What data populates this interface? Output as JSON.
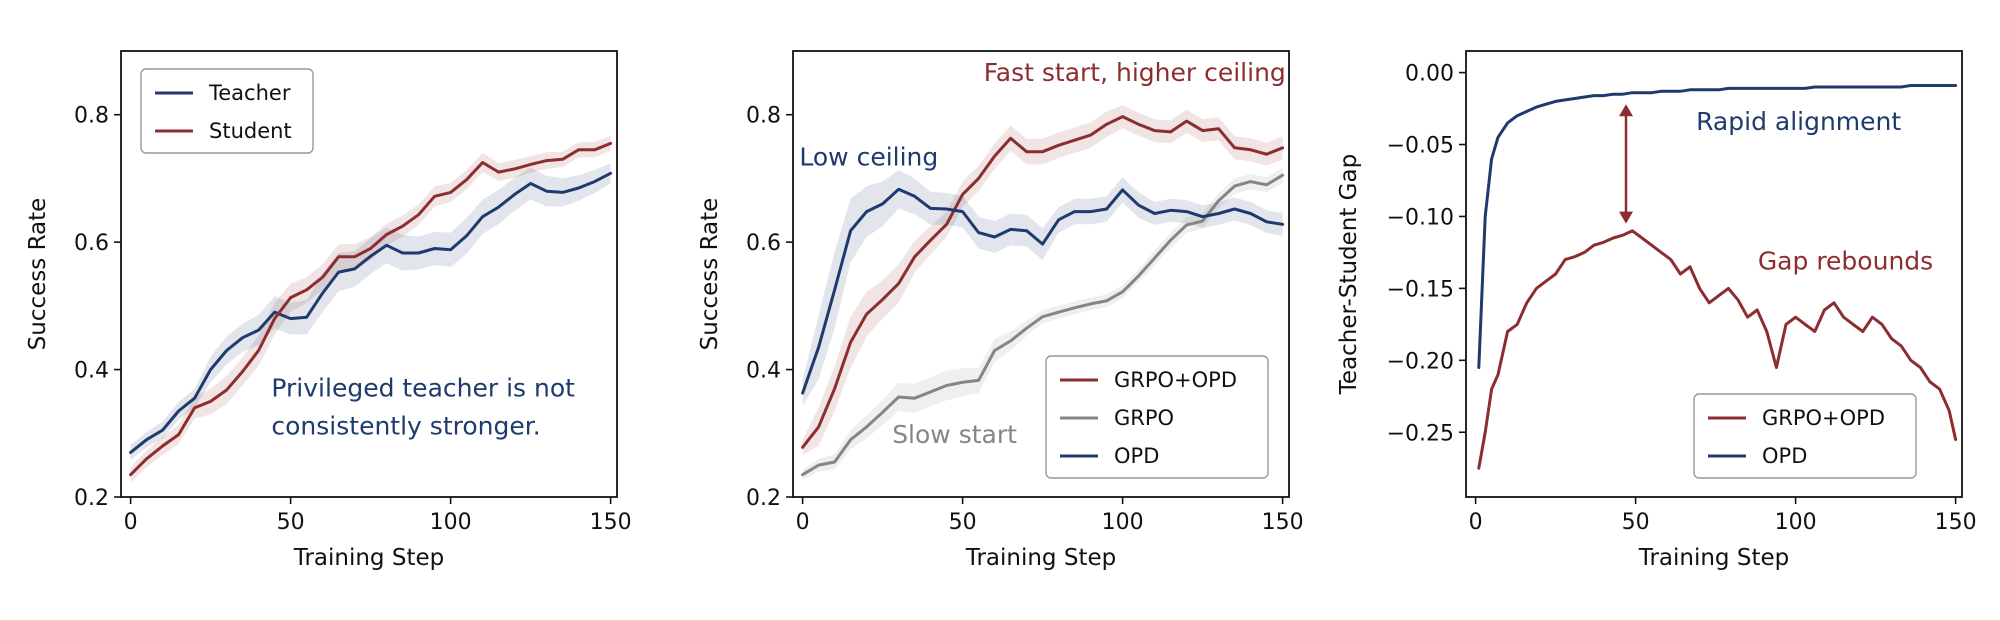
{
  "colors": {
    "teacher": "#1f3a6e",
    "student": "#8c2d30",
    "grpo": "#858585"
  },
  "chart_data": [
    {
      "type": "line",
      "xlabel": "Training Step",
      "ylabel": "Success Rate",
      "xlim": [
        -3,
        152
      ],
      "ylim": [
        0.2,
        0.9
      ],
      "xticks": [
        0,
        50,
        100,
        150
      ],
      "yticks": [
        0.2,
        0.4,
        0.6,
        0.8
      ],
      "ytick_labels": [
        "0.2",
        "0.4",
        "0.6",
        "0.8"
      ],
      "legend_position": "top-left",
      "x": [
        0,
        5,
        10,
        15,
        20,
        25,
        30,
        35,
        40,
        45,
        50,
        55,
        60,
        65,
        70,
        75,
        80,
        85,
        90,
        95,
        100,
        105,
        110,
        115,
        120,
        125,
        130,
        135,
        140,
        145,
        150
      ],
      "series": [
        {
          "name": "Teacher",
          "color": "#1f3a6e",
          "values": [
            0.27,
            0.29,
            0.305,
            0.335,
            0.355,
            0.4,
            0.43,
            0.45,
            0.462,
            0.49,
            0.48,
            0.482,
            0.52,
            0.553,
            0.558,
            0.578,
            0.595,
            0.583,
            0.583,
            0.59,
            0.588,
            0.61,
            0.64,
            0.655,
            0.675,
            0.692,
            0.68,
            0.678,
            0.685,
            0.695,
            0.708
          ],
          "band": [
            0.012,
            0.012,
            0.013,
            0.014,
            0.015,
            0.02,
            0.022,
            0.022,
            0.024,
            0.025,
            0.025,
            0.027,
            0.03,
            0.03,
            0.028,
            0.028,
            0.028,
            0.028,
            0.026,
            0.026,
            0.027,
            0.028,
            0.027,
            0.027,
            0.026,
            0.025,
            0.024,
            0.022,
            0.02,
            0.018,
            0.016
          ]
        },
        {
          "name": "Student",
          "color": "#8c2d30",
          "values": [
            0.235,
            0.26,
            0.28,
            0.298,
            0.34,
            0.35,
            0.368,
            0.397,
            0.43,
            0.48,
            0.513,
            0.525,
            0.545,
            0.577,
            0.577,
            0.59,
            0.612,
            0.625,
            0.643,
            0.672,
            0.678,
            0.698,
            0.725,
            0.71,
            0.715,
            0.722,
            0.728,
            0.73,
            0.745,
            0.745,
            0.755
          ],
          "band": [
            0.012,
            0.013,
            0.014,
            0.015,
            0.017,
            0.02,
            0.022,
            0.022,
            0.024,
            0.025,
            0.022,
            0.02,
            0.02,
            0.02,
            0.02,
            0.018,
            0.017,
            0.017,
            0.016,
            0.016,
            0.015,
            0.015,
            0.015,
            0.014,
            0.014,
            0.013,
            0.013,
            0.012,
            0.012,
            0.012,
            0.012
          ]
        }
      ],
      "annotations": [
        {
          "text": "Privileged teacher is not",
          "x": 44,
          "y": 0.358,
          "color": "#1f3a6e"
        },
        {
          "text": "consistently stronger.",
          "x": 44,
          "y": 0.298,
          "color": "#1f3a6e"
        }
      ]
    },
    {
      "type": "line",
      "xlabel": "Training Step",
      "ylabel": "Success Rate",
      "xlim": [
        -3,
        152
      ],
      "ylim": [
        0.2,
        0.9
      ],
      "xticks": [
        0,
        50,
        100,
        150
      ],
      "yticks": [
        0.2,
        0.4,
        0.6,
        0.8
      ],
      "ytick_labels": [
        "0.2",
        "0.4",
        "0.6",
        "0.8"
      ],
      "legend_position": "bottom-right",
      "x": [
        0,
        5,
        10,
        15,
        20,
        25,
        30,
        35,
        40,
        45,
        50,
        55,
        60,
        65,
        70,
        75,
        80,
        85,
        90,
        95,
        100,
        105,
        110,
        115,
        120,
        125,
        130,
        135,
        140,
        145,
        150
      ],
      "series": [
        {
          "name": "GRPO+OPD",
          "color": "#8c2d30",
          "values": [
            0.278,
            0.31,
            0.37,
            0.443,
            0.487,
            0.51,
            0.535,
            0.577,
            0.603,
            0.628,
            0.675,
            0.7,
            0.735,
            0.763,
            0.742,
            0.742,
            0.752,
            0.76,
            0.768,
            0.785,
            0.797,
            0.785,
            0.775,
            0.773,
            0.79,
            0.775,
            0.778,
            0.748,
            0.745,
            0.738,
            0.748
          ],
          "band": [
            0.012,
            0.03,
            0.035,
            0.04,
            0.035,
            0.03,
            0.03,
            0.025,
            0.022,
            0.02,
            0.02,
            0.02,
            0.02,
            0.02,
            0.02,
            0.02,
            0.02,
            0.02,
            0.02,
            0.02,
            0.018,
            0.018,
            0.018,
            0.018,
            0.018,
            0.018,
            0.018,
            0.018,
            0.018,
            0.018,
            0.018
          ]
        },
        {
          "name": "GRPO",
          "color": "#858585",
          "values": [
            0.235,
            0.25,
            0.255,
            0.29,
            0.31,
            0.333,
            0.357,
            0.355,
            0.365,
            0.375,
            0.38,
            0.383,
            0.43,
            0.445,
            0.465,
            0.483,
            0.49,
            0.497,
            0.503,
            0.508,
            0.522,
            0.547,
            0.575,
            0.603,
            0.627,
            0.633,
            0.665,
            0.688,
            0.695,
            0.69,
            0.705
          ],
          "band": [
            0.008,
            0.01,
            0.012,
            0.015,
            0.018,
            0.02,
            0.022,
            0.023,
            0.023,
            0.023,
            0.022,
            0.02,
            0.018,
            0.015,
            0.012,
            0.01,
            0.01,
            0.01,
            0.01,
            0.01,
            0.01,
            0.01,
            0.012,
            0.012,
            0.012,
            0.012,
            0.012,
            0.012,
            0.012,
            0.012,
            0.012
          ]
        },
        {
          "name": "OPD",
          "color": "#1f3a6e",
          "values": [
            0.363,
            0.435,
            0.525,
            0.618,
            0.648,
            0.66,
            0.683,
            0.672,
            0.653,
            0.652,
            0.648,
            0.615,
            0.608,
            0.62,
            0.618,
            0.597,
            0.635,
            0.648,
            0.648,
            0.652,
            0.682,
            0.658,
            0.645,
            0.65,
            0.648,
            0.64,
            0.645,
            0.652,
            0.645,
            0.632,
            0.628
          ],
          "band": [
            0.02,
            0.05,
            0.06,
            0.05,
            0.04,
            0.035,
            0.03,
            0.028,
            0.026,
            0.025,
            0.025,
            0.025,
            0.025,
            0.025,
            0.025,
            0.025,
            0.02,
            0.02,
            0.02,
            0.02,
            0.02,
            0.02,
            0.018,
            0.018,
            0.018,
            0.018,
            0.018,
            0.018,
            0.018,
            0.018,
            0.018
          ]
        }
      ],
      "annotations": [
        {
          "text": "Fast start, higher ceiling",
          "x": 151,
          "y": 0.853,
          "color": "#8c2d30",
          "anchor": "end"
        },
        {
          "text": "Low ceiling",
          "x": -1,
          "y": 0.72,
          "color": "#1f3a6e"
        },
        {
          "text": "Slow start",
          "x": 28,
          "y": 0.285,
          "color": "#858585"
        }
      ]
    },
    {
      "type": "line",
      "xlabel": "Training Step",
      "ylabel": "Teacher-Student Gap",
      "xlim": [
        -3,
        152
      ],
      "ylim": [
        -0.295,
        0.015
      ],
      "xticks": [
        0,
        50,
        100,
        150
      ],
      "yticks": [
        -0.25,
        -0.2,
        -0.15,
        -0.1,
        -0.05,
        0.0
      ],
      "ytick_labels": [
        "−0.25",
        "−0.20",
        "−0.15",
        "−0.10",
        "−0.05",
        "0.00"
      ],
      "legend_position": "bottom-right",
      "x": [
        1,
        3,
        5,
        7,
        10,
        13,
        16,
        19,
        22,
        25,
        28,
        31,
        34,
        37,
        40,
        43,
        46,
        49,
        52,
        55,
        58,
        61,
        64,
        67,
        70,
        73,
        76,
        79,
        82,
        85,
        88,
        91,
        94,
        97,
        100,
        103,
        106,
        109,
        112,
        115,
        118,
        121,
        124,
        127,
        130,
        133,
        136,
        139,
        142,
        145,
        148,
        150
      ],
      "series": [
        {
          "name": "GRPO+OPD",
          "color": "#8c2d30",
          "values": [
            -0.275,
            -0.25,
            -0.22,
            -0.21,
            -0.18,
            -0.175,
            -0.16,
            -0.15,
            -0.145,
            -0.14,
            -0.13,
            -0.128,
            -0.125,
            -0.12,
            -0.118,
            -0.115,
            -0.113,
            -0.11,
            -0.115,
            -0.12,
            -0.125,
            -0.13,
            -0.14,
            -0.135,
            -0.15,
            -0.16,
            -0.155,
            -0.15,
            -0.158,
            -0.17,
            -0.165,
            -0.18,
            -0.205,
            -0.175,
            -0.17,
            -0.175,
            -0.18,
            -0.165,
            -0.16,
            -0.17,
            -0.175,
            -0.18,
            -0.17,
            -0.175,
            -0.185,
            -0.19,
            -0.2,
            -0.205,
            -0.215,
            -0.22,
            -0.235,
            -0.255
          ]
        },
        {
          "name": "OPD",
          "color": "#1f3a6e",
          "values": [
            -0.205,
            -0.1,
            -0.06,
            -0.045,
            -0.035,
            -0.03,
            -0.027,
            -0.024,
            -0.022,
            -0.02,
            -0.019,
            -0.018,
            -0.017,
            -0.016,
            -0.016,
            -0.015,
            -0.015,
            -0.014,
            -0.014,
            -0.014,
            -0.013,
            -0.013,
            -0.013,
            -0.012,
            -0.012,
            -0.012,
            -0.012,
            -0.011,
            -0.011,
            -0.011,
            -0.011,
            -0.011,
            -0.011,
            -0.011,
            -0.011,
            -0.011,
            -0.01,
            -0.01,
            -0.01,
            -0.01,
            -0.01,
            -0.01,
            -0.01,
            -0.01,
            -0.01,
            -0.01,
            -0.009,
            -0.009,
            -0.009,
            -0.009,
            -0.009,
            -0.009
          ]
        }
      ],
      "annotations": [
        {
          "text": "Rapid alignment",
          "x": 133,
          "y": -0.04,
          "color": "#1f3a6e",
          "anchor": "end"
        },
        {
          "text": "Gap rebounds",
          "x": 143,
          "y": -0.137,
          "color": "#8c2d30",
          "anchor": "end"
        }
      ],
      "arrow": {
        "x": 47,
        "y_from": -0.022,
        "y_to": -0.105,
        "color": "#8c2d30"
      }
    }
  ]
}
